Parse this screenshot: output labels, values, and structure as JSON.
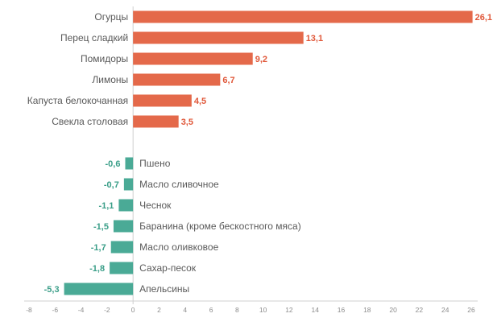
{
  "chart_data": {
    "type": "bar",
    "orientation": "horizontal",
    "title": "",
    "xlabel": "",
    "ylabel": "",
    "xlim": [
      -8,
      26
    ],
    "xticks": [
      -8,
      -6,
      -4,
      -2,
      0,
      2,
      4,
      6,
      8,
      10,
      12,
      14,
      16,
      18,
      20,
      22,
      24,
      26
    ],
    "grid": false,
    "colors": {
      "positive": "#E4694A",
      "negative": "#4AAA96",
      "label_positive": "#E0583A",
      "label_negative": "#3A9E88"
    },
    "groups": [
      {
        "name": "increase",
        "categories": [
          "Огурцы",
          "Перец сладкий",
          "Помидоры",
          "Лимоны",
          "Капуста белокочанная",
          "Свекла столовая"
        ],
        "values": [
          26.1,
          13.1,
          9.2,
          6.7,
          4.5,
          3.5
        ],
        "labels": [
          "26,1",
          "13,1",
          "9,2",
          "6,7",
          "4,5",
          "3,5"
        ]
      },
      {
        "name": "decrease",
        "categories": [
          "Пшено",
          "Масло сливочное",
          "Чеснок",
          "Баранина (кроме бескостного мяса)",
          "Масло оливковое",
          "Сахар-песок",
          "Апельсины"
        ],
        "values": [
          -0.6,
          -0.7,
          -1.1,
          -1.5,
          -1.7,
          -1.8,
          -5.3
        ],
        "labels": [
          "-0,6",
          "-0,7",
          "-1,1",
          "-1,5",
          "-1,7",
          "-1,8",
          "-5,3"
        ]
      }
    ]
  }
}
